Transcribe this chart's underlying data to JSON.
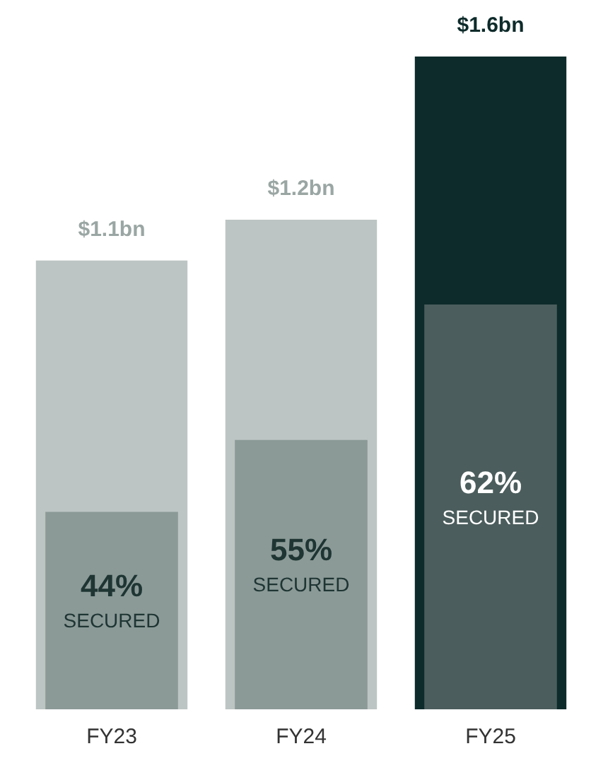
{
  "chart_data": {
    "type": "bar",
    "categories": [
      "FY23",
      "FY24",
      "FY25"
    ],
    "series": [
      {
        "colors": [
          "#bcc5c3",
          "#bcc5c3",
          "#0d2b2a"
        ],
        "values": [
          1.1,
          1.2,
          1.6
        ],
        "value_labels": [
          "$1.1bn",
          "$1.2bn",
          "$1.6bn"
        ]
      },
      {
        "colors": [
          "#8b9a97",
          "#8b9a97",
          "#4b5d5c"
        ],
        "values": [
          0.484,
          0.66,
          0.992
        ]
      }
    ],
    "annotations": [
      "44% SECURED",
      "55% SECURED",
      "62% SECURED"
    ],
    "grid": false,
    "legend": false
  }
}
